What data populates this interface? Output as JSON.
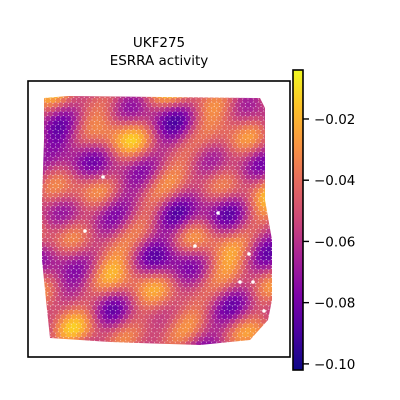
{
  "chart_data": {
    "type": "heatmap",
    "title": "UKF275",
    "subtitle": "ESRRA activity",
    "xlabel": "",
    "ylabel": "",
    "colormap": "plasma",
    "colorbar": {
      "vmin": -0.102,
      "vmax": -0.004,
      "ticks": [
        -0.02,
        -0.04,
        -0.06,
        -0.08,
        -0.1
      ],
      "tick_labels": [
        "−0.02",
        "−0.04",
        "−0.06",
        "−0.08",
        "−0.10"
      ]
    },
    "grid": false,
    "legend": "colorbar-right"
  },
  "colors": {
    "low": "#0d0887",
    "mid": "#cc4778",
    "high": "#f0f921",
    "background": "#ffffff",
    "axes": "#000000"
  }
}
